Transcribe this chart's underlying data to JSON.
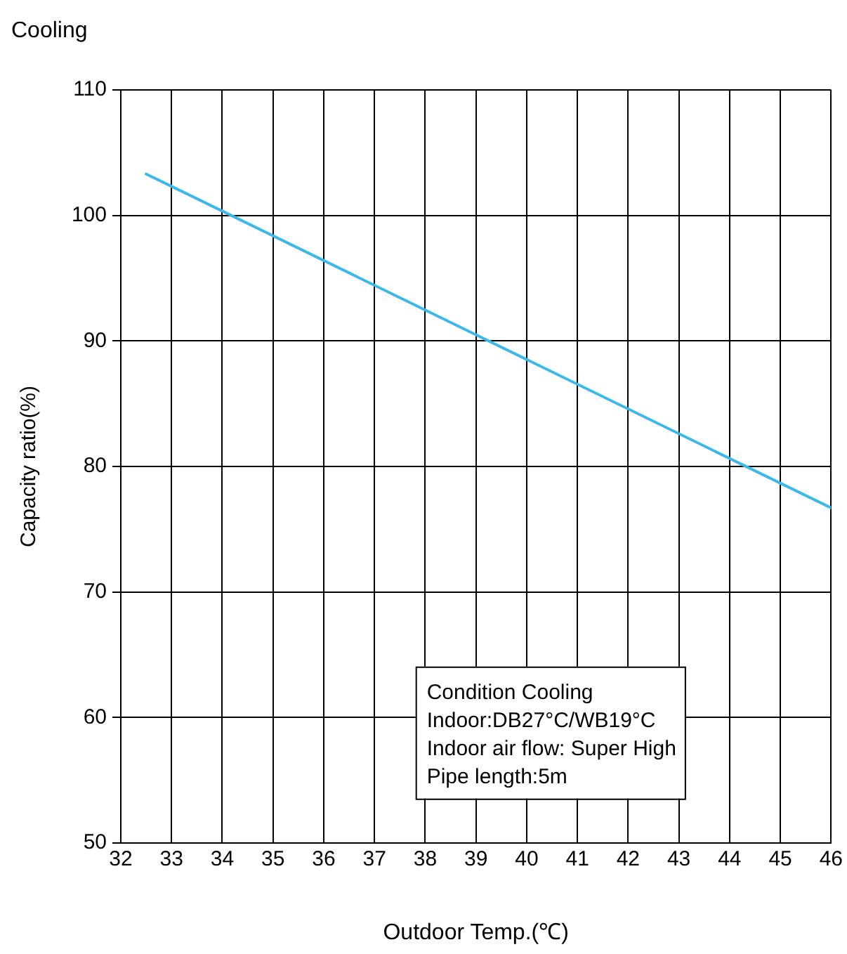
{
  "chart_data": {
    "type": "line",
    "title": "Cooling",
    "xlabel": "Outdoor Temp.(℃)",
    "ylabel": "Capacity ratio(%)",
    "series": [
      {
        "color": "#3db8e8",
        "x": [
          32.5,
          46
        ],
        "values": [
          103.3,
          76.7
        ]
      }
    ],
    "xlim": [
      32,
      46
    ],
    "xticks": [
      32,
      33,
      34,
      35,
      36,
      37,
      38,
      39,
      40,
      41,
      42,
      43,
      44,
      45,
      46
    ],
    "ylim": [
      50,
      110
    ],
    "yticks": [
      50,
      60,
      70,
      80,
      90,
      100,
      110
    ],
    "grid": true,
    "legend": false,
    "marker": "none",
    "line_style": "solid",
    "annotations": [
      "Condition Cooling",
      "Indoor:DB27°C/WB19°C",
      "Indoor air flow: Super High",
      "Pipe length:5m"
    ]
  }
}
